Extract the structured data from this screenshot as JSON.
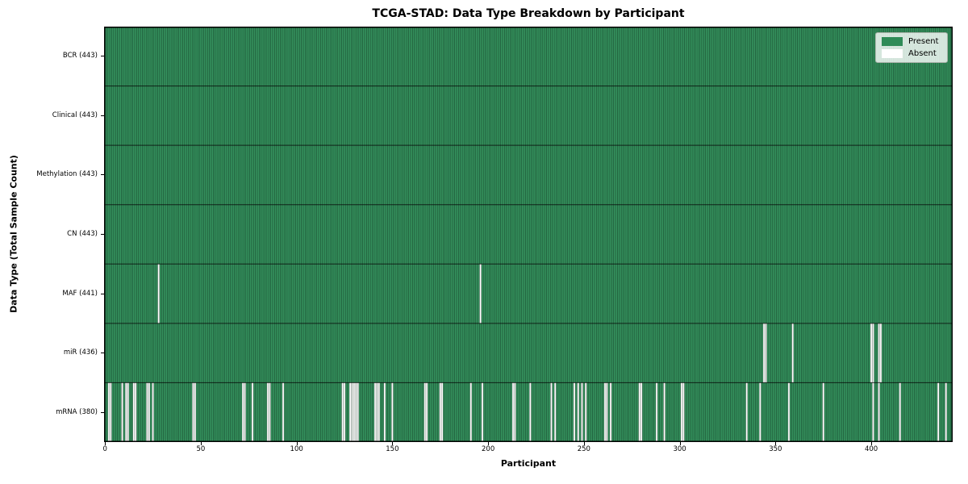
{
  "chart_data": {
    "type": "heatmap",
    "title": "TCGA-STAD: Data Type Breakdown by Participant",
    "xlabel": "Participant",
    "ylabel": "Data Type (Total Sample Count)",
    "n_participants": 443,
    "x_ticks": [
      0,
      50,
      100,
      150,
      200,
      250,
      300,
      350,
      400
    ],
    "xlim": [
      -0.5,
      442.5
    ],
    "grid": false,
    "legend_position": "upper-right",
    "legend": [
      {
        "label": "Present",
        "color": "#2e8b57"
      },
      {
        "label": "Absent",
        "color": "#ffffff"
      }
    ],
    "colors": {
      "present_fill": "#35925e",
      "absent_fill": "#ffffff",
      "cell_edge": "rgba(8,30,16,0.55)",
      "row_divider": "rgba(0,0,0,0.75)",
      "spine": "#000000"
    },
    "rows": [
      {
        "data_type": "BCR",
        "label": "BCR (443)",
        "total": 443,
        "absent_participants": []
      },
      {
        "data_type": "Clinical",
        "label": "Clinical (443)",
        "total": 443,
        "absent_participants": []
      },
      {
        "data_type": "Methylation",
        "label": "Methylation (443)",
        "total": 443,
        "absent_participants": []
      },
      {
        "data_type": "CN",
        "label": "CN (443)",
        "total": 443,
        "absent_participants": []
      },
      {
        "data_type": "MAF",
        "label": "MAF (441)",
        "total": 441,
        "absent_participants": [
          28,
          196
        ]
      },
      {
        "data_type": "miR",
        "label": "miR (436)",
        "total": 436,
        "absent_participants": [
          344,
          345,
          359,
          400,
          401,
          404,
          405
        ]
      },
      {
        "data_type": "mRNA",
        "label": "mRNA (380)",
        "total": 380,
        "absent_participants": [
          2,
          3,
          9,
          11,
          12,
          15,
          16,
          22,
          23,
          25,
          46,
          47,
          72,
          73,
          77,
          85,
          86,
          93,
          124,
          125,
          128,
          129,
          130,
          131,
          132,
          141,
          142,
          143,
          146,
          150,
          167,
          168,
          175,
          176,
          191,
          197,
          213,
          214,
          222,
          233,
          235,
          245,
          247,
          249,
          251,
          261,
          262,
          264,
          279,
          280,
          288,
          292,
          301,
          302,
          335,
          342,
          357,
          375,
          401,
          404,
          415,
          435,
          439
        ]
      }
    ]
  }
}
